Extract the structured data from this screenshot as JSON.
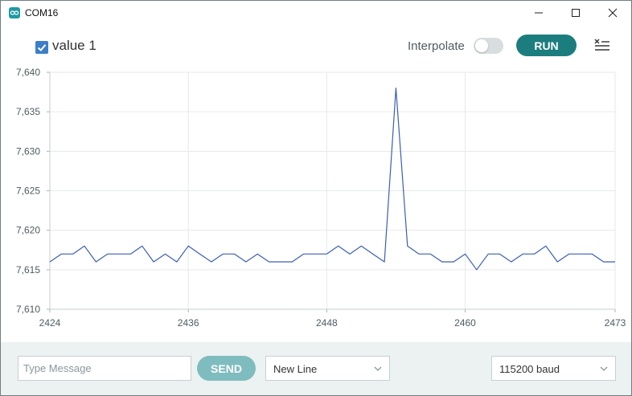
{
  "window": {
    "title": "COM16",
    "controls": [
      "minimize",
      "maximize",
      "close"
    ]
  },
  "toolbar": {
    "series_checkbox_label": "value 1",
    "series_checked": true,
    "interpolate_label": "Interpolate",
    "interpolate_on": false,
    "run_label": "RUN",
    "clear_icon": "clear-list-icon"
  },
  "colors": {
    "accent": "#1c7d7f",
    "accent_light": "#7fbcbf",
    "series": "#3a5fb0",
    "checkbox": "#3d7ec9",
    "bottom_bar": "#ecf1f1"
  },
  "chart_data": {
    "type": "line",
    "y_tick_labels": [
      "7,640",
      "7,635",
      "7,630",
      "7,625",
      "7,620",
      "7,615",
      "7,610"
    ],
    "x_tick_labels": [
      "2424",
      "2436",
      "2448",
      "2460",
      "2473"
    ],
    "ylim": [
      7.61,
      7.64
    ],
    "xlim": [
      2424,
      2473
    ],
    "x_ticks": [
      2424,
      2436,
      2448,
      2460,
      2473
    ],
    "y_ticks": [
      7.64,
      7.635,
      7.63,
      7.625,
      7.62,
      7.615,
      7.61
    ],
    "grid": true,
    "series": [
      {
        "x": [
          2424,
          2425,
          2426,
          2427,
          2428,
          2429,
          2430,
          2431,
          2432,
          2433,
          2434,
          2435,
          2436,
          2437,
          2438,
          2439,
          2440,
          2441,
          2442,
          2443,
          2444,
          2445,
          2446,
          2447,
          2448,
          2449,
          2450,
          2451,
          2452,
          2453,
          2454,
          2455,
          2456,
          2457,
          2458,
          2459,
          2460,
          2461,
          2462,
          2463,
          2464,
          2465,
          2466,
          2467,
          2468,
          2469,
          2470,
          2471,
          2472,
          2473
        ],
        "values": [
          7.616,
          7.617,
          7.617,
          7.618,
          7.616,
          7.617,
          7.617,
          7.617,
          7.618,
          7.616,
          7.617,
          7.616,
          7.618,
          7.617,
          7.616,
          7.617,
          7.617,
          7.616,
          7.617,
          7.616,
          7.616,
          7.616,
          7.617,
          7.617,
          7.617,
          7.618,
          7.617,
          7.618,
          7.617,
          7.616,
          7.638,
          7.618,
          7.617,
          7.617,
          7.616,
          7.616,
          7.617,
          7.615,
          7.617,
          7.617,
          7.616,
          7.617,
          7.617,
          7.618,
          7.616,
          7.617,
          7.617,
          7.617,
          7.616,
          7.616
        ]
      }
    ]
  },
  "bottom": {
    "message_placeholder": "Type Message",
    "message_value": "",
    "send_label": "SEND",
    "line_ending": "New Line",
    "baud": "115200 baud"
  }
}
